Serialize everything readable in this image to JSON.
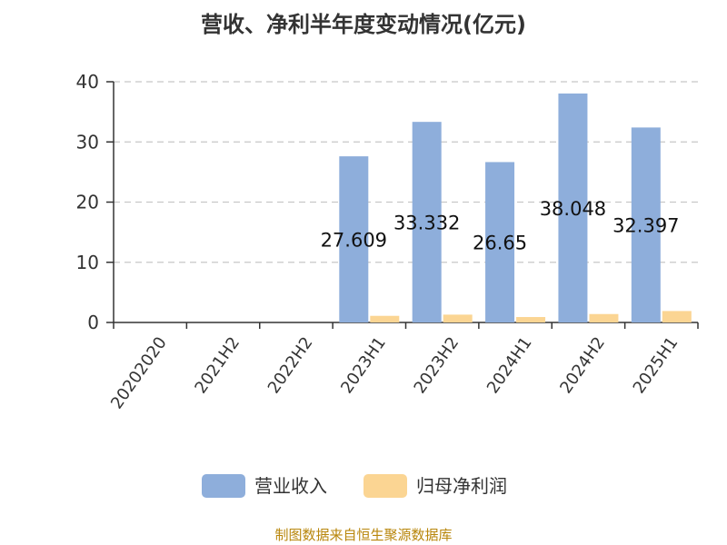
{
  "chart_data": {
    "type": "bar",
    "title": "营收、净利半年度变动情况(亿元)",
    "categories": [
      "20202020",
      "2021H2",
      "2022H2",
      "2023H1",
      "2023H2",
      "2024H1",
      "2024H2",
      "2025H1"
    ],
    "series": [
      {
        "name": "营业收入",
        "color": "#8eaedb",
        "values": [
          0,
          0,
          0,
          27.609,
          33.332,
          26.65,
          38.048,
          32.397
        ],
        "labels": [
          "",
          "",
          "",
          "27.609",
          "33.332",
          "26.65",
          "38.048",
          "32.397"
        ]
      },
      {
        "name": "归母净利润",
        "color": "#fbd593",
        "values": [
          0,
          0,
          0,
          1.1,
          1.3,
          0.9,
          1.4,
          1.9
        ]
      }
    ],
    "ylim": [
      0,
      40
    ],
    "yticks": [
      "0",
      "10",
      "20",
      "30",
      "40"
    ],
    "ytick_values": [
      0,
      10,
      20,
      30,
      40
    ],
    "grid": true,
    "legend_position": "bottom"
  },
  "source_text": "制图数据来自恒生聚源数据库"
}
